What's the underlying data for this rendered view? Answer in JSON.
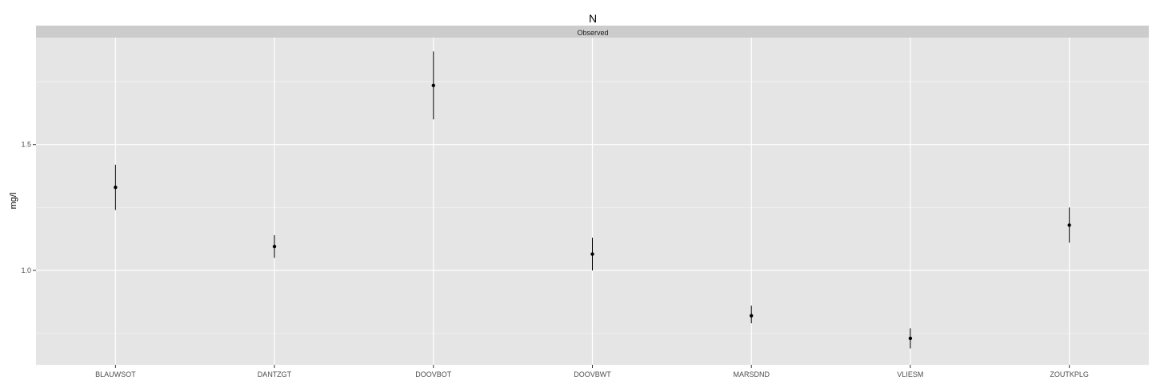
{
  "chart_data": {
    "type": "scatter",
    "subtype": "pointrange",
    "title": "N",
    "facet_label": "Observed",
    "xlabel": "",
    "ylabel": "mg/l",
    "ylim": [
      0.625,
      1.925
    ],
    "yticks": [
      1.0,
      1.5
    ],
    "yticks_minor": [
      0.75,
      1.25,
      1.75
    ],
    "ytick_labels": [
      "1.0",
      "1.5"
    ],
    "grid": true,
    "categories": [
      "BLAUWSOT",
      "DANTZGT",
      "DOOVBOT",
      "DOOVBWT",
      "MARSDND",
      "VLIESM",
      "ZOUTKPLG"
    ],
    "series": [
      {
        "values": [
          1.33,
          1.095,
          1.735,
          1.065,
          0.82,
          0.73,
          1.18
        ],
        "lower": [
          1.24,
          1.05,
          1.6,
          1.0,
          0.79,
          0.69,
          1.11
        ],
        "upper": [
          1.42,
          1.14,
          1.87,
          1.13,
          0.86,
          0.77,
          1.25
        ]
      }
    ],
    "colors": {
      "panel_bg": "#e5e5e5",
      "strip_bg": "#cccccc",
      "grid_major": "#ffffff",
      "grid_minor": "#f2f2f2",
      "points": "#000000"
    }
  }
}
